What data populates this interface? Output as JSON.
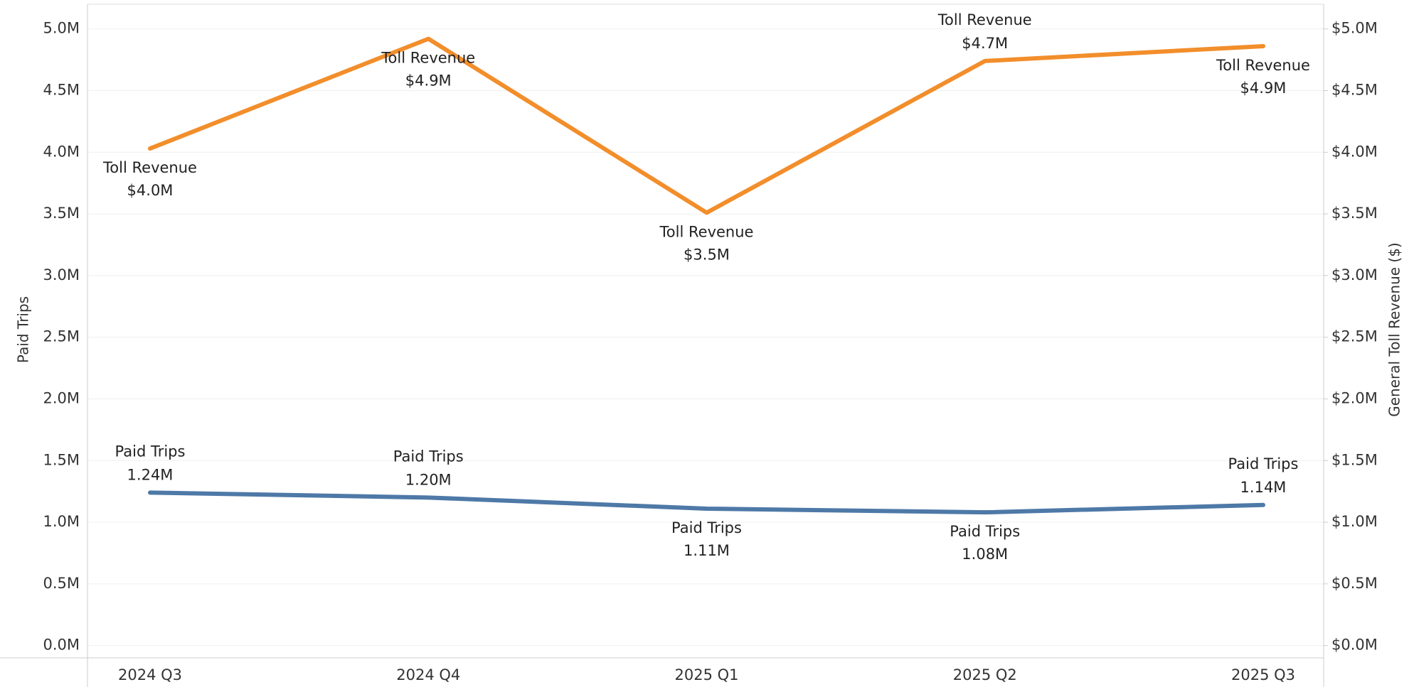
{
  "chart_data": {
    "type": "line",
    "categories": [
      "2024 Q3",
      "2024 Q4",
      "2025 Q1",
      "2025 Q2",
      "2025 Q3"
    ],
    "y_axis_label": "Paid Trips",
    "y2_axis_label": "General Toll Revenue ($)",
    "ylim": [
      -100000,
      5200000
    ],
    "yticks": [
      {
        "value": 0,
        "label": "0.0M"
      },
      {
        "value": 500000,
        "label": "0.5M"
      },
      {
        "value": 1000000,
        "label": "1.0M"
      },
      {
        "value": 1500000,
        "label": "1.5M"
      },
      {
        "value": 2000000,
        "label": "2.0M"
      },
      {
        "value": 2500000,
        "label": "2.5M"
      },
      {
        "value": 3000000,
        "label": "3.0M"
      },
      {
        "value": 3500000,
        "label": "3.5M"
      },
      {
        "value": 4000000,
        "label": "4.0M"
      },
      {
        "value": 4500000,
        "label": "4.5M"
      },
      {
        "value": 5000000,
        "label": "5.0M"
      }
    ],
    "y2lim": [
      -100000,
      5200000
    ],
    "y2ticks": [
      {
        "value": 0,
        "label": "$0.0M"
      },
      {
        "value": 500000,
        "label": "$0.5M"
      },
      {
        "value": 1000000,
        "label": "$1.0M"
      },
      {
        "value": 1500000,
        "label": "$1.5M"
      },
      {
        "value": 2000000,
        "label": "$2.0M"
      },
      {
        "value": 2500000,
        "label": "$2.5M"
      },
      {
        "value": 3000000,
        "label": "$3.0M"
      },
      {
        "value": 3500000,
        "label": "$3.5M"
      },
      {
        "value": 4000000,
        "label": "$4.0M"
      },
      {
        "value": 4500000,
        "label": "$4.5M"
      },
      {
        "value": 5000000,
        "label": "$5.0M"
      }
    ],
    "grid": true,
    "series": [
      {
        "name": "Toll Revenue",
        "color": "#f28e2b",
        "axis": "y2",
        "values": [
          4030000,
          4920000,
          3510000,
          4740000,
          4860000
        ],
        "value_labels": [
          "$4.0M",
          "$4.9M",
          "$3.5M",
          "$4.7M",
          "$4.9M"
        ]
      },
      {
        "name": "Paid Trips",
        "color": "#4e79a7",
        "values": [
          1240000,
          1200000,
          1110000,
          1080000,
          1140000
        ],
        "value_labels": [
          "1.24M",
          "1.20M",
          "1.11M",
          "1.08M",
          "1.14M"
        ]
      }
    ]
  }
}
